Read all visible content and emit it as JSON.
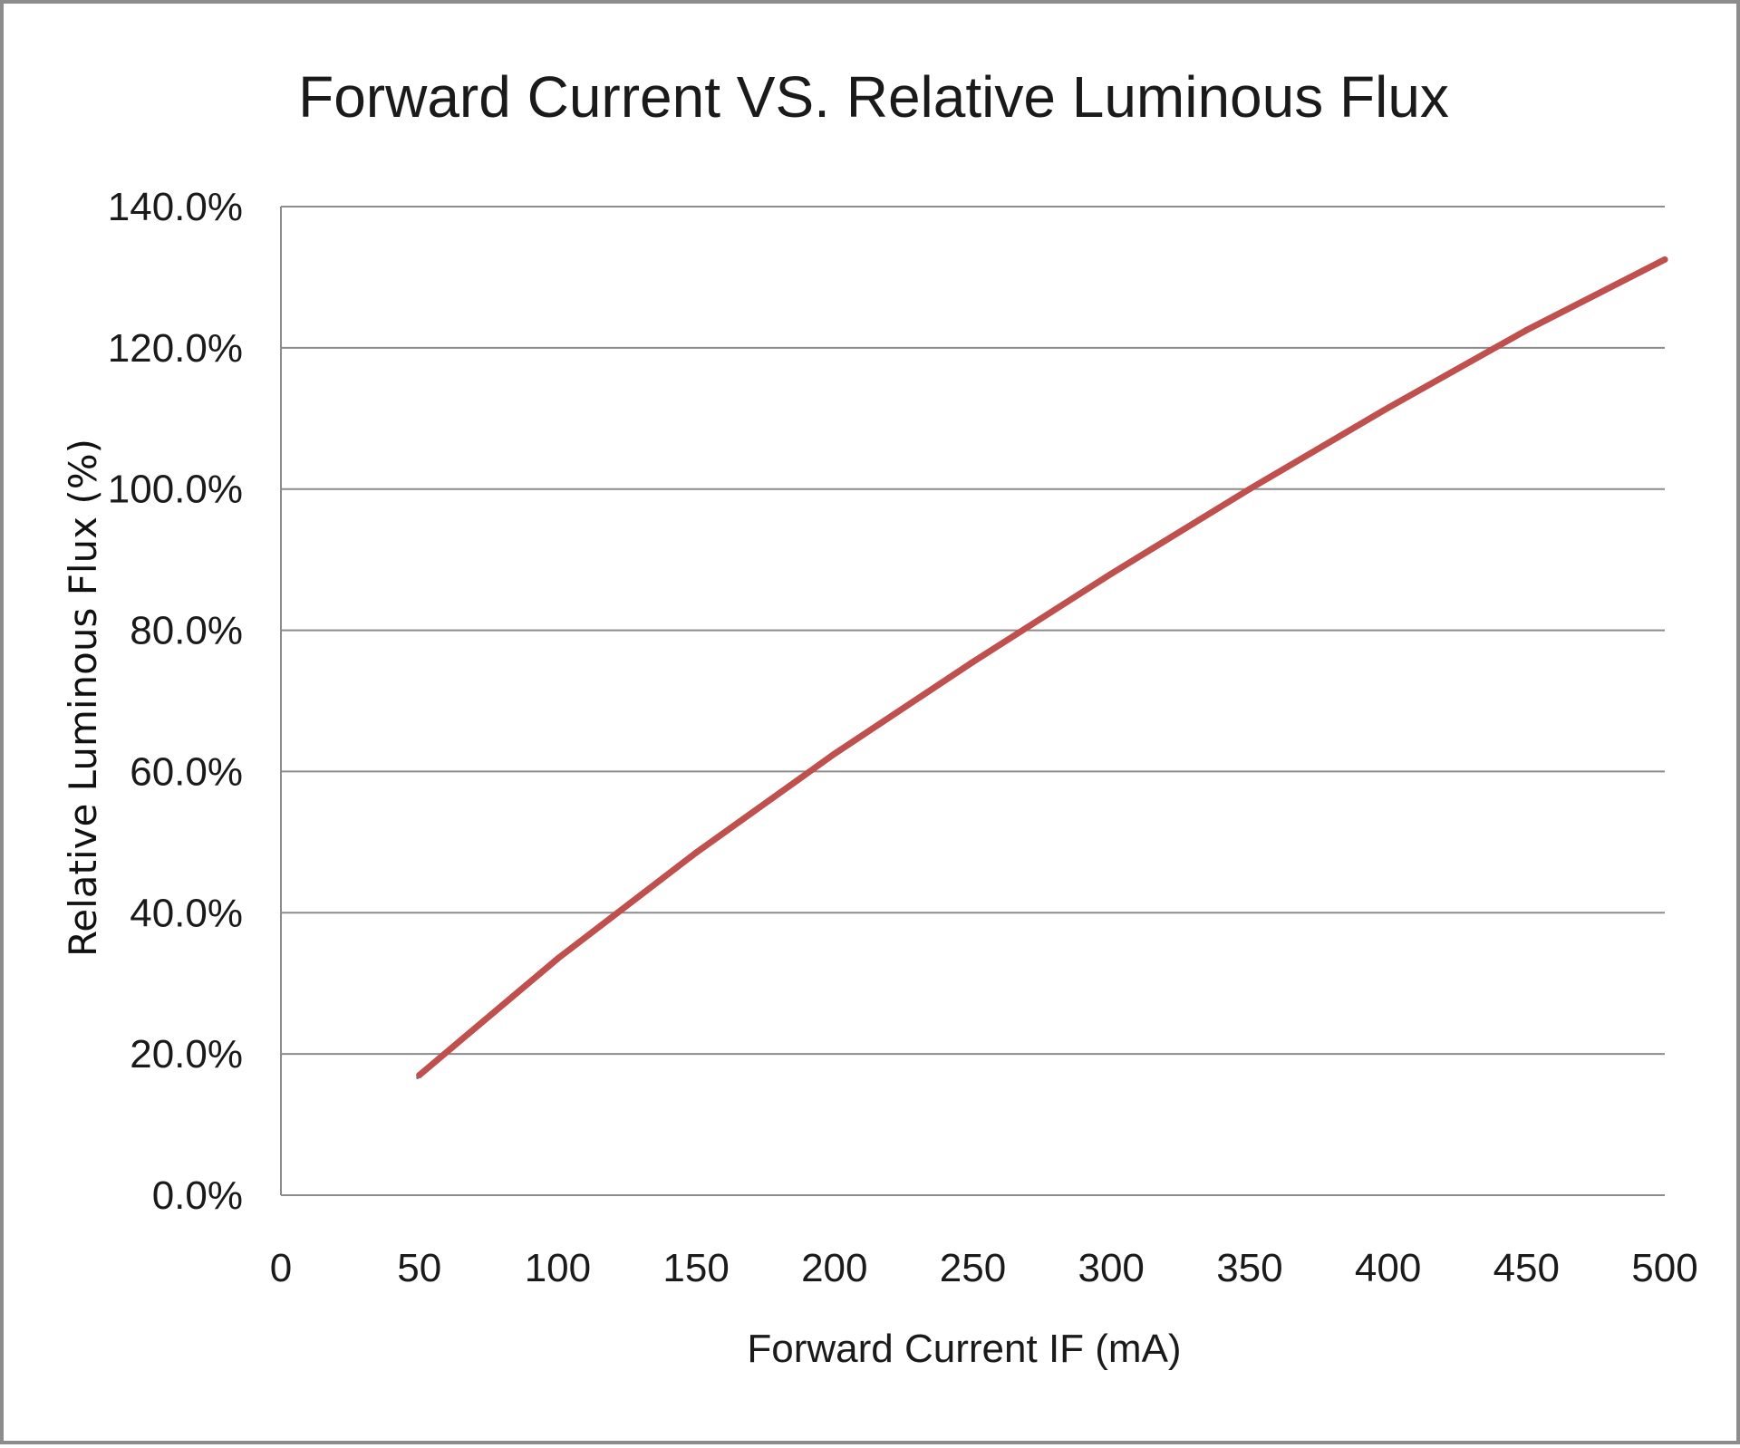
{
  "chart_data": {
    "type": "line",
    "title": "Forward Current VS. Relative Luminous Flux",
    "xlabel": "Forward Current IF (mA)",
    "ylabel": "Relative Luminous Flux (%)",
    "xlim": [
      0,
      500
    ],
    "ylim": [
      0,
      140
    ],
    "x_ticks": [
      0,
      50,
      100,
      150,
      200,
      250,
      300,
      350,
      400,
      450,
      500
    ],
    "x_tick_labels": [
      "0",
      "50",
      "100",
      "150",
      "200",
      "250",
      "300",
      "350",
      "400",
      "450",
      "500"
    ],
    "y_ticks": [
      0,
      20,
      40,
      60,
      80,
      100,
      120,
      140
    ],
    "y_tick_labels": [
      "0.0%",
      "20.0%",
      "40.0%",
      "60.0%",
      "80.0%",
      "100.0%",
      "120.0%",
      "140.0%"
    ],
    "grid": "horizontal",
    "legend": "none",
    "series": [
      {
        "color": "#c0504d",
        "x": [
          50,
          100,
          150,
          200,
          250,
          300,
          350,
          400,
          450,
          500
        ],
        "y": [
          17,
          33.5,
          48.5,
          62.5,
          75.5,
          88,
          100,
          111.5,
          122.5,
          132.5
        ]
      }
    ],
    "colors": {
      "line": "#c0504d",
      "shadow": "#4f81bd",
      "grid": "#8c8c8c",
      "axis": "#8c8c8c"
    }
  }
}
